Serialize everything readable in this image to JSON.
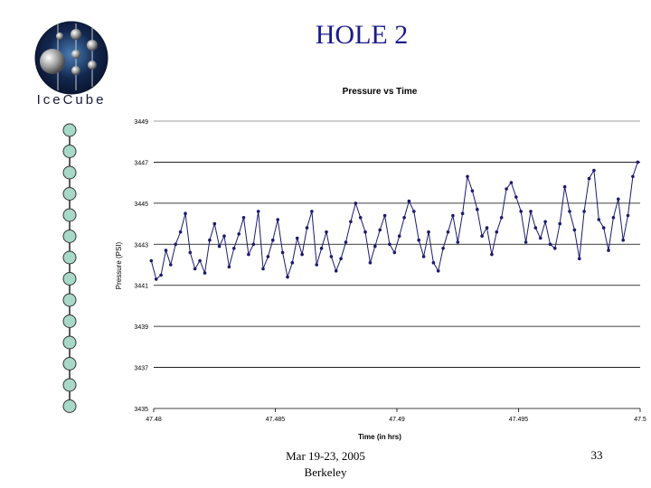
{
  "slide": {
    "title": "HOLE 2",
    "footer_date": "Mar 19-23, 2005",
    "footer_place": "Berkeley",
    "page_number": "33"
  },
  "logo": {
    "text": "IceCube"
  },
  "chart_data": {
    "type": "line",
    "title": "Pressure vs Time",
    "xlabel": "Time (in hrs)",
    "ylabel": "Pressure (PSI)",
    "x_ticks": [
      "47.48",
      "47.485",
      "47.49",
      "47.495",
      "47.5"
    ],
    "y_ticks": [
      "3435",
      "3437",
      "3439",
      "3441",
      "3443",
      "3445",
      "3447",
      "3449"
    ],
    "xlim": [
      47.48,
      47.5
    ],
    "ylim": [
      3435,
      3449
    ],
    "grid": true,
    "series": [
      {
        "color": "#1a1a6e",
        "x": [
          47.4799,
          47.4801,
          47.4803,
          47.4805,
          47.4807,
          47.4809,
          47.4811,
          47.4813,
          47.4815,
          47.4817,
          47.4819,
          47.4821,
          47.4823,
          47.4825,
          47.4827,
          47.4829,
          47.4831,
          47.4833,
          47.4835,
          47.4837,
          47.4839,
          47.4841,
          47.4843,
          47.4845,
          47.4847,
          47.4849,
          47.4851,
          47.4853,
          47.4855,
          47.4857,
          47.4859,
          47.4861,
          47.4863,
          47.4865,
          47.4867,
          47.4869,
          47.4871,
          47.4873,
          47.4875,
          47.4877,
          47.4879,
          47.4881,
          47.4883,
          47.4885,
          47.4887,
          47.4889,
          47.4891,
          47.4893,
          47.4895,
          47.4897,
          47.4899,
          47.4901,
          47.4903,
          47.4905,
          47.4907,
          47.4909,
          47.4911,
          47.4913,
          47.4915,
          47.4917,
          47.4919,
          47.4921,
          47.4923,
          47.4925,
          47.4927,
          47.4929,
          47.4931,
          47.4933,
          47.4935,
          47.4937,
          47.4939,
          47.4941,
          47.4943,
          47.4945,
          47.4947,
          47.4949,
          47.4951,
          47.4953,
          47.4955,
          47.4957,
          47.4959,
          47.4961,
          47.4963,
          47.4965,
          47.4967,
          47.4969,
          47.4971,
          47.4973,
          47.4975,
          47.4977,
          47.4979,
          47.4981,
          47.4983,
          47.4985,
          47.4987,
          47.4989,
          47.4991,
          47.4993,
          47.4995,
          47.4997,
          47.4999
        ],
        "y": [
          3442.2,
          3441.3,
          3441.5,
          3442.7,
          3442.0,
          3443.0,
          3443.6,
          3444.5,
          3442.6,
          3441.8,
          3442.2,
          3441.6,
          3443.2,
          3444.0,
          3442.9,
          3443.4,
          3441.9,
          3442.8,
          3443.5,
          3444.3,
          3442.5,
          3443.0,
          3444.6,
          3441.8,
          3442.4,
          3443.2,
          3444.2,
          3442.6,
          3441.4,
          3442.1,
          3443.3,
          3442.5,
          3443.8,
          3444.6,
          3442.0,
          3442.8,
          3443.6,
          3442.4,
          3441.7,
          3442.3,
          3443.1,
          3444.1,
          3445.0,
          3444.3,
          3443.6,
          3442.1,
          3442.9,
          3443.7,
          3444.4,
          3443.0,
          3442.6,
          3443.4,
          3444.3,
          3445.1,
          3444.6,
          3443.2,
          3442.4,
          3443.6,
          3442.1,
          3441.7,
          3442.8,
          3443.6,
          3444.4,
          3443.1,
          3444.5,
          3446.3,
          3445.6,
          3444.7,
          3443.4,
          3443.8,
          3442.5,
          3443.6,
          3444.3,
          3445.7,
          3446.0,
          3445.3,
          3444.6,
          3443.1,
          3444.6,
          3443.8,
          3443.3,
          3444.1,
          3443.0,
          3442.8,
          3444.0,
          3445.8,
          3444.6,
          3443.7,
          3442.3,
          3444.6,
          3446.2,
          3446.6,
          3444.2,
          3443.8,
          3442.7,
          3444.3,
          3445.2,
          3443.2,
          3444.4,
          3446.3,
          3447.0
        ]
      }
    ]
  }
}
